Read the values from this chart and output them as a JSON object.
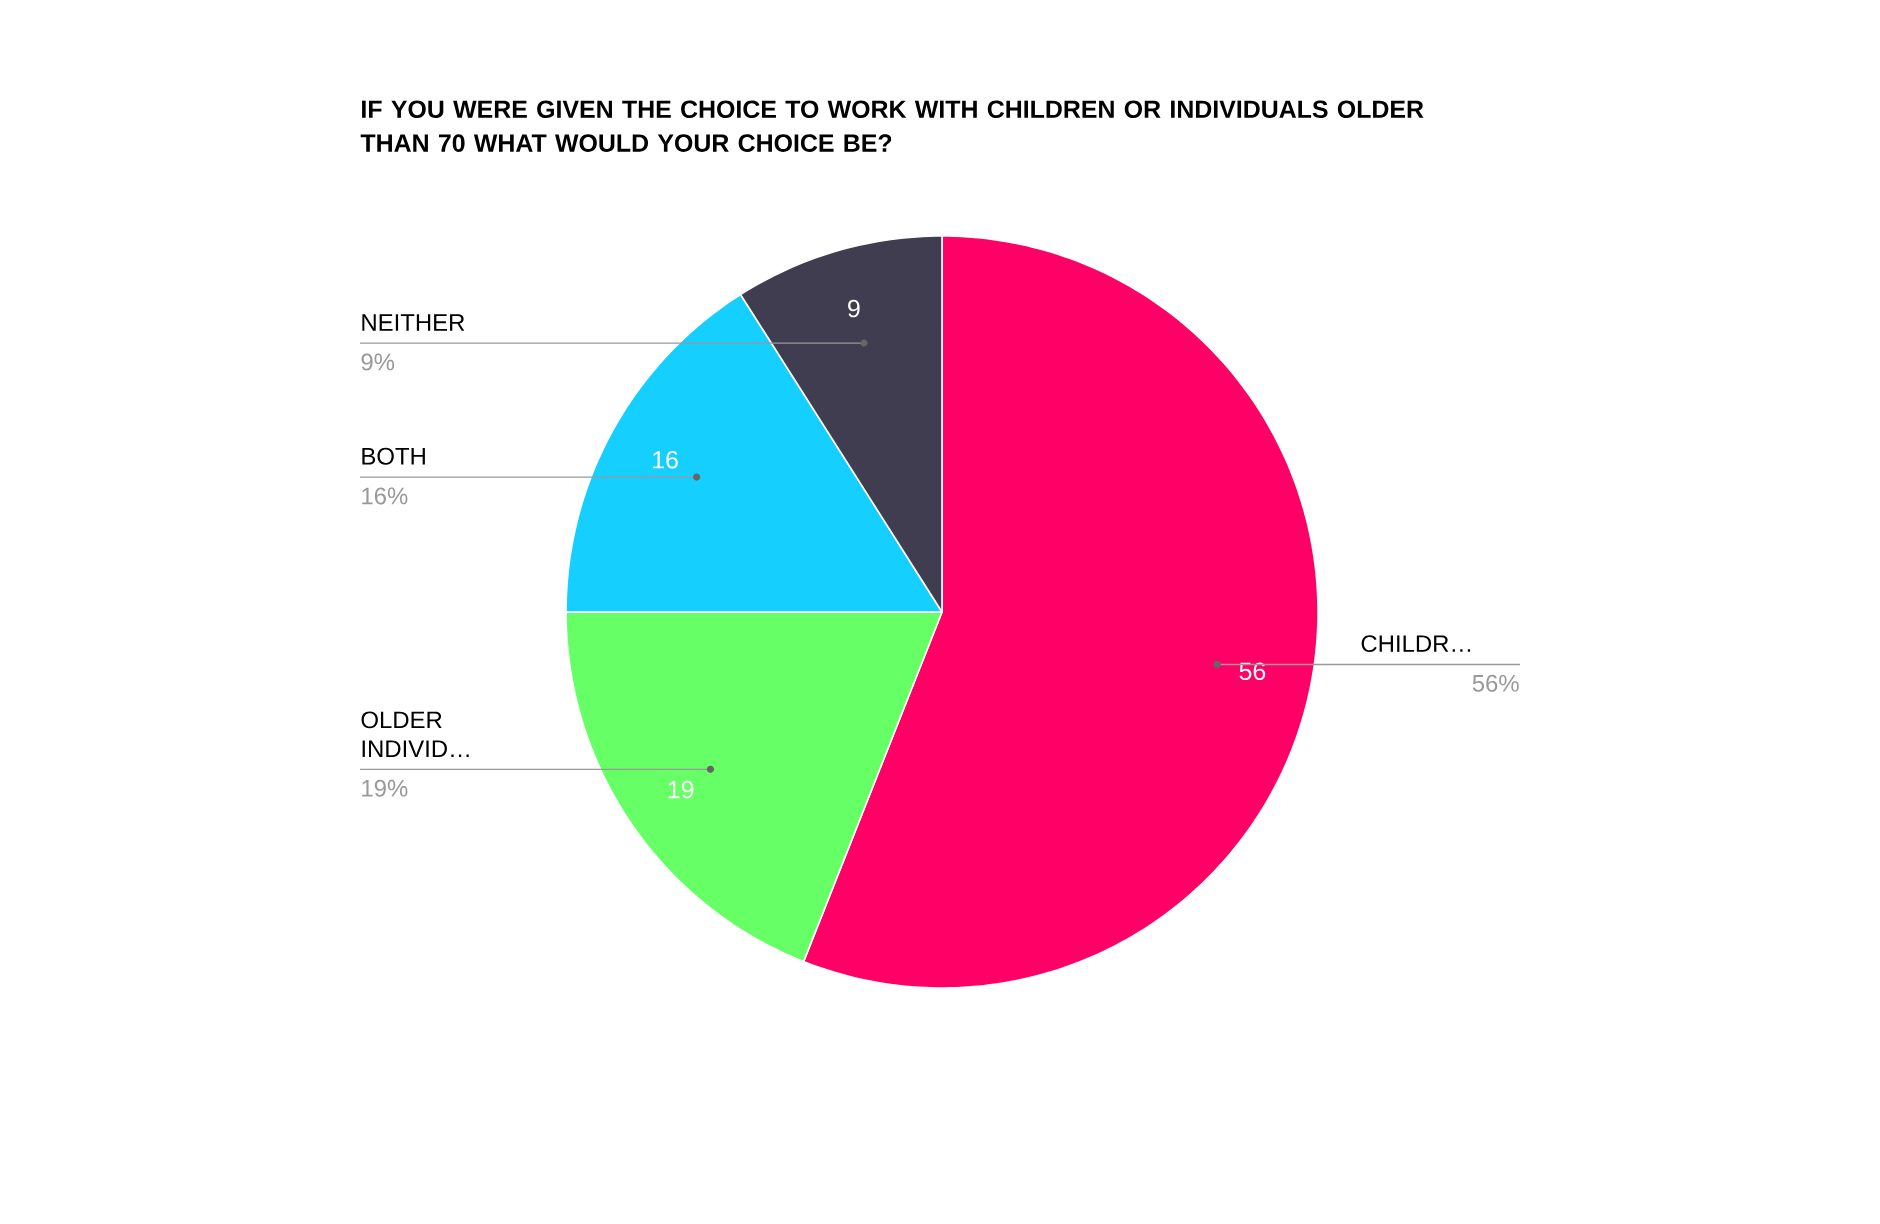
{
  "chart_data": {
    "type": "pie",
    "title": "IF YOU WERE GIVEN THE CHOICE TO WORK WITH CHILDREN OR INDIVIDUALS OLDER THAN 70 WHAT WOULD YOUR CHOICE BE?",
    "categories": [
      "CHILDR…",
      "OLDER INDIVID…",
      "BOTH",
      "NEITHER"
    ],
    "values": [
      56,
      19,
      16,
      9
    ],
    "colors": [
      "#ff0066",
      "#66ff66",
      "#14cfff",
      "#3f3d4f"
    ],
    "data_labels": true,
    "annotations": [
      "56%",
      "19%",
      "16%",
      "9%"
    ]
  }
}
